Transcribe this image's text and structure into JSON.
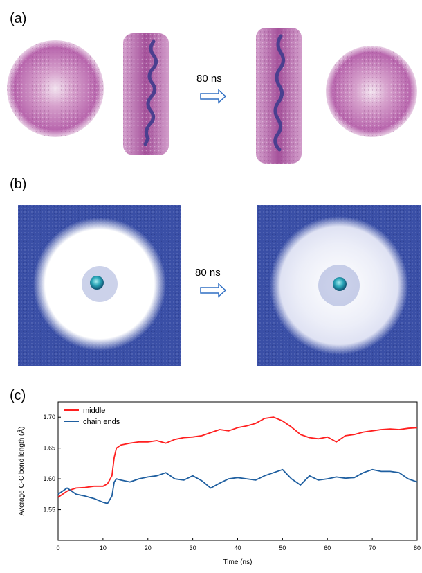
{
  "panels": {
    "a_label": "(a)",
    "b_label": "(b)",
    "c_label": "(c)",
    "a_arrow_text": "80 ns",
    "b_arrow_text": "80 ns"
  },
  "colors": {
    "micelle": "#b25aa8",
    "micelle_light": "#d8a6cf",
    "chain": "#4b3f8f",
    "water": "#3a4fa6",
    "water_light": "#6d7dc4",
    "middle_series": "#ff1f1f",
    "ends_series": "#1f5fa0",
    "arrow": "#2f6fc4"
  },
  "chart_data": {
    "type": "line",
    "xlabel": "Time (ns)",
    "ylabel": "Average C-C bond length (Å)",
    "xlim": [
      0,
      80
    ],
    "ylim": [
      1.5,
      1.725
    ],
    "x_ticks": [
      "0",
      "10",
      "20",
      "30",
      "40",
      "50",
      "60",
      "70",
      "80"
    ],
    "y_ticks": [
      "1.55",
      "1.60",
      "1.65",
      "1.70"
    ],
    "legend_position": "top-left",
    "grid": false,
    "x": [
      0,
      2,
      4,
      6,
      8,
      10,
      11,
      12,
      12.5,
      13,
      14,
      16,
      18,
      20,
      22,
      24,
      26,
      28,
      30,
      32,
      34,
      36,
      38,
      40,
      42,
      44,
      46,
      48,
      50,
      52,
      54,
      56,
      58,
      60,
      62,
      64,
      66,
      68,
      70,
      72,
      74,
      76,
      78,
      80
    ],
    "series": [
      {
        "name": "middle",
        "values": [
          1.57,
          1.58,
          1.585,
          1.586,
          1.588,
          1.588,
          1.592,
          1.605,
          1.635,
          1.65,
          1.655,
          1.658,
          1.66,
          1.66,
          1.662,
          1.658,
          1.664,
          1.667,
          1.668,
          1.67,
          1.675,
          1.68,
          1.678,
          1.683,
          1.686,
          1.69,
          1.698,
          1.7,
          1.694,
          1.684,
          1.672,
          1.667,
          1.665,
          1.668,
          1.66,
          1.67,
          1.672,
          1.676,
          1.678,
          1.68,
          1.681,
          1.68,
          1.682,
          1.683
        ]
      },
      {
        "name": "chain ends",
        "values": [
          1.575,
          1.585,
          1.575,
          1.572,
          1.568,
          1.562,
          1.56,
          1.572,
          1.595,
          1.6,
          1.598,
          1.595,
          1.6,
          1.603,
          1.605,
          1.61,
          1.6,
          1.598,
          1.605,
          1.597,
          1.585,
          1.593,
          1.6,
          1.602,
          1.6,
          1.598,
          1.605,
          1.61,
          1.615,
          1.6,
          1.59,
          1.605,
          1.598,
          1.6,
          1.603,
          1.601,
          1.602,
          1.61,
          1.615,
          1.612,
          1.612,
          1.61,
          1.6,
          1.595
        ]
      }
    ]
  }
}
